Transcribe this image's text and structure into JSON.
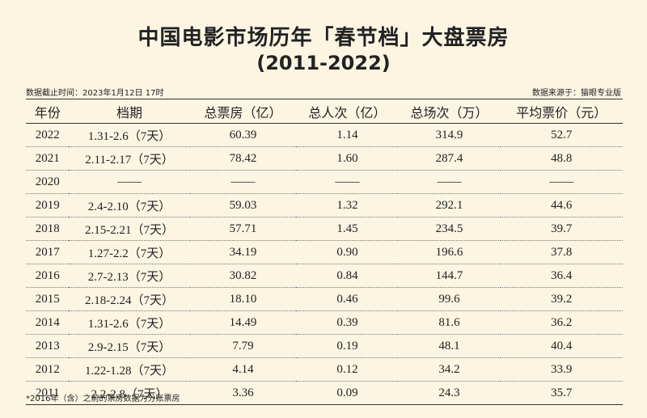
{
  "header": {
    "title": "中国电影市场历年「春节档」大盘票房",
    "subtitle": "(2011-2022)",
    "updated": "数据截止时间：2023年1月12日 17时",
    "source": "数据来源于：猫眼专业版"
  },
  "table": {
    "columns": [
      "年份",
      "档期",
      "总票房（亿）",
      "总人次（亿）",
      "总场次（万）",
      "平均票价（元）"
    ],
    "rows": [
      [
        "2022",
        "1.31-2.6（7天）",
        "60.39",
        "1.14",
        "314.9",
        "52.7"
      ],
      [
        "2021",
        "2.11-2.17（7天）",
        "78.42",
        "1.60",
        "287.4",
        "48.8"
      ],
      [
        "2020",
        "——",
        "——",
        "——",
        "——",
        "——"
      ],
      [
        "2019",
        "2.4-2.10（7天）",
        "59.03",
        "1.32",
        "292.1",
        "44.6"
      ],
      [
        "2018",
        "2.15-2.21（7天）",
        "57.71",
        "1.45",
        "234.5",
        "39.7"
      ],
      [
        "2017",
        "1.27-2.2（7天）",
        "34.19",
        "0.90",
        "196.6",
        "37.8"
      ],
      [
        "2016",
        "2.7-2.13（7天）",
        "30.82",
        "0.84",
        "144.7",
        "36.4"
      ],
      [
        "2015",
        "2.18-2.24（7天）",
        "18.10",
        "0.46",
        "99.6",
        "39.2"
      ],
      [
        "2014",
        "1.31-2.6（7天）",
        "14.49",
        "0.39",
        "81.6",
        "36.2"
      ],
      [
        "2013",
        "2.9-2.15（7天）",
        "7.79",
        "0.19",
        "48.1",
        "40.4"
      ],
      [
        "2012",
        "1.22-1.28（7天）",
        "4.14",
        "0.12",
        "34.2",
        "33.9"
      ],
      [
        "2011",
        "2.2-2.8（7天）",
        "3.36",
        "0.09",
        "24.3",
        "35.7"
      ]
    ]
  },
  "footnote": "*2016年（含）之前的票房数据为分账票房"
}
